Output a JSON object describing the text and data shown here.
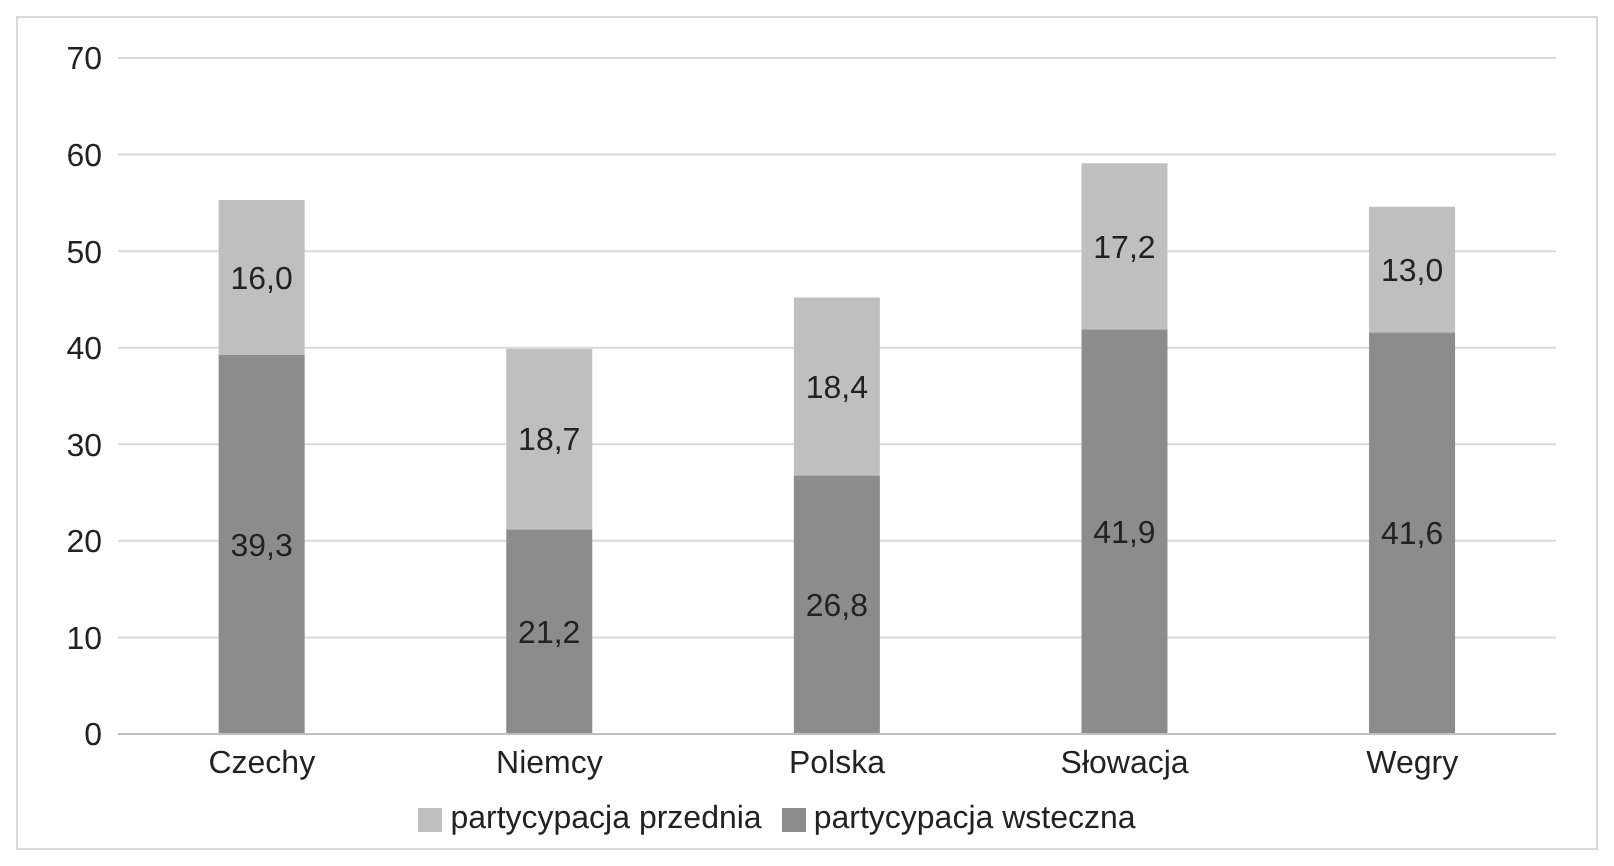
{
  "chart_data": {
    "type": "bar",
    "stacked": true,
    "categories": [
      "Czechy",
      "Niemcy",
      "Polska",
      "Słowacja",
      "Wegry"
    ],
    "series": [
      {
        "name": "partycypacja wsteczna",
        "color": "#8c8c8c",
        "values": [
          39.3,
          21.2,
          26.8,
          41.9,
          41.6
        ],
        "value_labels": [
          "39,3",
          "21,2",
          "26,8",
          "41,9",
          "41,6"
        ]
      },
      {
        "name": "partycypacja przednia",
        "color": "#bfbfbf",
        "values": [
          16.0,
          18.7,
          18.4,
          17.2,
          13.0
        ],
        "value_labels": [
          "16,0",
          "18,7",
          "18,4",
          "17,2",
          "13,0"
        ]
      }
    ],
    "ylim": [
      0,
      70
    ],
    "yticks": [
      0,
      10,
      20,
      30,
      40,
      50,
      60,
      70
    ],
    "grid": "y",
    "legend": "bottom"
  }
}
